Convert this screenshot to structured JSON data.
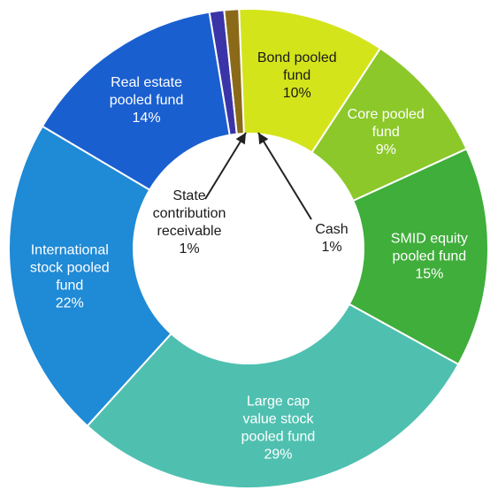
{
  "chart_data": {
    "type": "pie",
    "style": "donut",
    "slices": [
      {
        "label": "Bond pooled fund",
        "lines": [
          "Bond pooled",
          "fund",
          "10%"
        ],
        "value": 10,
        "color": "#d4e41a",
        "text_color": "#1a1a1a"
      },
      {
        "label": "Core pooled fund",
        "lines": [
          "Core pooled",
          "fund",
          "9%"
        ],
        "value": 9,
        "color": "#8cc82a",
        "text_color": "#ffffff"
      },
      {
        "label": "SMID equity pooled fund",
        "lines": [
          "SMID equity",
          "pooled fund",
          "15%"
        ],
        "value": 15,
        "color": "#3fae3a",
        "text_color": "#ffffff"
      },
      {
        "label": "Large cap value stock pooled fund",
        "lines": [
          "Large cap",
          "value stock",
          "pooled fund",
          "29%"
        ],
        "value": 29,
        "color": "#4fc0b0",
        "text_color": "#ffffff"
      },
      {
        "label": "International stock pooled fund",
        "lines": [
          "International",
          "stock pooled",
          "fund",
          "22%"
        ],
        "value": 22,
        "color": "#1f8ad6",
        "text_color": "#ffffff"
      },
      {
        "label": "Real estate pooled fund",
        "lines": [
          "Real estate",
          "pooled fund",
          "14%"
        ],
        "value": 14,
        "color": "#1a5fd0",
        "text_color": "#ffffff"
      },
      {
        "label": "State contribution receivable",
        "lines": [
          "State",
          "contribution",
          "receivable",
          "1%"
        ],
        "value": 1,
        "color": "#3a34a8",
        "text_color": "#1a1a1a"
      },
      {
        "label": "Cash",
        "lines": [
          "Cash",
          "1%"
        ],
        "value": 1,
        "color": "#8a6a18",
        "text_color": "#1a1a1a"
      }
    ]
  }
}
